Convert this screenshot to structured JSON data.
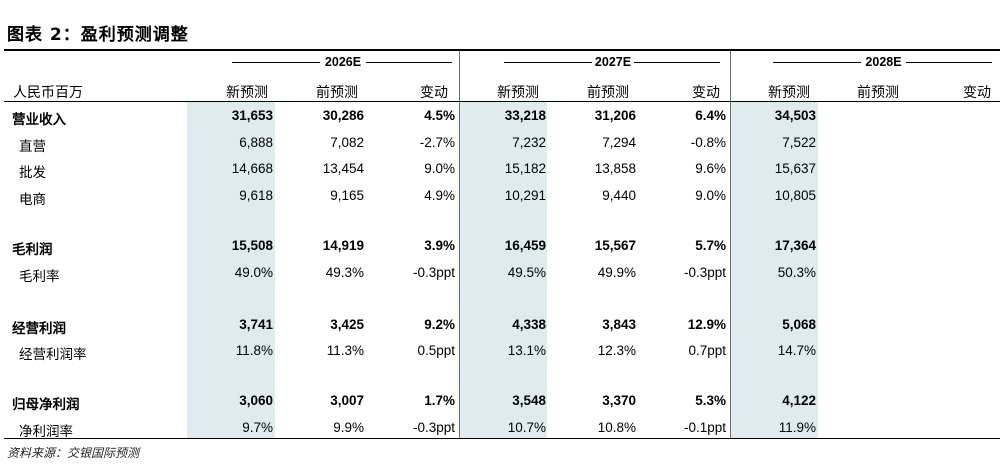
{
  "title": "图表 2：盈利预测调整",
  "years": [
    "2026E",
    "2027E",
    "2028E"
  ],
  "header": {
    "unit_label": "人民币百万",
    "columns": [
      "新预测",
      "前预测",
      "变动"
    ]
  },
  "rows": [
    {
      "label": "营业收入",
      "bold": true,
      "values": [
        "31,653",
        "30,286",
        "4.5%",
        "33,218",
        "31,206",
        "6.4%",
        "34,503",
        "",
        ""
      ]
    },
    {
      "label": "直营",
      "bold": false,
      "values": [
        "6,888",
        "7,082",
        "-2.7%",
        "7,232",
        "7,294",
        "-0.8%",
        "7,522",
        "",
        ""
      ]
    },
    {
      "label": "批发",
      "bold": false,
      "values": [
        "14,668",
        "13,454",
        "9.0%",
        "15,182",
        "13,858",
        "9.6%",
        "15,637",
        "",
        ""
      ]
    },
    {
      "label": "电商",
      "bold": false,
      "values": [
        "9,618",
        "9,165",
        "4.9%",
        "10,291",
        "9,440",
        "9.0%",
        "10,805",
        "",
        ""
      ]
    },
    {
      "label": "毛利润",
      "bold": true,
      "values": [
        "15,508",
        "14,919",
        "3.9%",
        "16,459",
        "15,567",
        "5.7%",
        "17,364",
        "",
        ""
      ]
    },
    {
      "label": "毛利率",
      "bold": false,
      "values": [
        "49.0%",
        "49.3%",
        "-0.3ppt",
        "49.5%",
        "49.9%",
        "-0.3ppt",
        "50.3%",
        "",
        ""
      ]
    },
    {
      "label": "经营利润",
      "bold": true,
      "values": [
        "3,741",
        "3,425",
        "9.2%",
        "4,338",
        "3,843",
        "12.9%",
        "5,068",
        "",
        ""
      ]
    },
    {
      "label": "经营利润率",
      "bold": false,
      "values": [
        "11.8%",
        "11.3%",
        "0.5ppt",
        "13.1%",
        "12.3%",
        "0.7ppt",
        "14.7%",
        "",
        ""
      ]
    },
    {
      "label": "归母净利润",
      "bold": true,
      "values": [
        "3,060",
        "3,007",
        "1.7%",
        "3,548",
        "3,370",
        "5.3%",
        "4,122",
        "",
        ""
      ]
    },
    {
      "label": "净利润率",
      "bold": false,
      "values": [
        "9.7%",
        "9.9%",
        "-0.3ppt",
        "10.7%",
        "10.8%",
        "-0.1ppt",
        "11.9%",
        "",
        ""
      ]
    }
  ],
  "source": "资料来源：交银国际预测"
}
